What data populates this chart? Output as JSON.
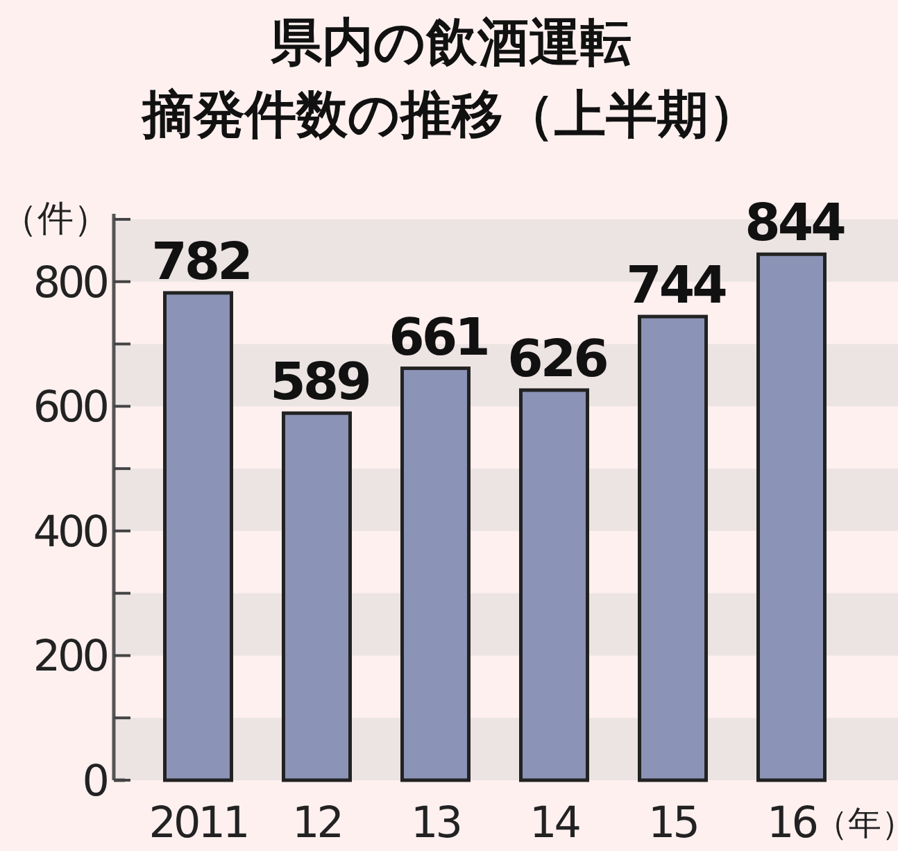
{
  "chart_data": {
    "type": "bar",
    "title": "県内の飲酒運転",
    "subtitle": "摘発件数の推移（上半期）",
    "ylabel": "（件）",
    "xlabel": "（年）",
    "categories": [
      "2011",
      "12",
      "13",
      "14",
      "15",
      "16"
    ],
    "values": [
      782,
      589,
      661,
      626,
      744,
      844
    ],
    "color": "#8b93b6",
    "data_labels": true,
    "ylim": [
      0,
      900
    ],
    "yticks": [
      0,
      {
        "value": 100,
        "label": null
      },
      200,
      {
        "value": 300,
        "label": null
      },
      400,
      {
        "value": 500,
        "label": null
      },
      600,
      {
        "value": 700,
        "label": null
      },
      800,
      {
        "value": 900,
        "label": null
      }
    ],
    "bands": [
      {
        "axis": "y",
        "from": 0,
        "to": 100,
        "color": "#ece3e3"
      },
      {
        "axis": "y",
        "from": 200,
        "to": 300,
        "color": "#ece3e3"
      },
      {
        "axis": "y",
        "from": 400,
        "to": 500,
        "color": "#ece3e3"
      },
      {
        "axis": "y",
        "from": 600,
        "to": 700,
        "color": "#ece3e3"
      },
      {
        "axis": "y",
        "from": 800,
        "to": 900,
        "color": "#ece3e3"
      }
    ],
    "grid": false
  }
}
